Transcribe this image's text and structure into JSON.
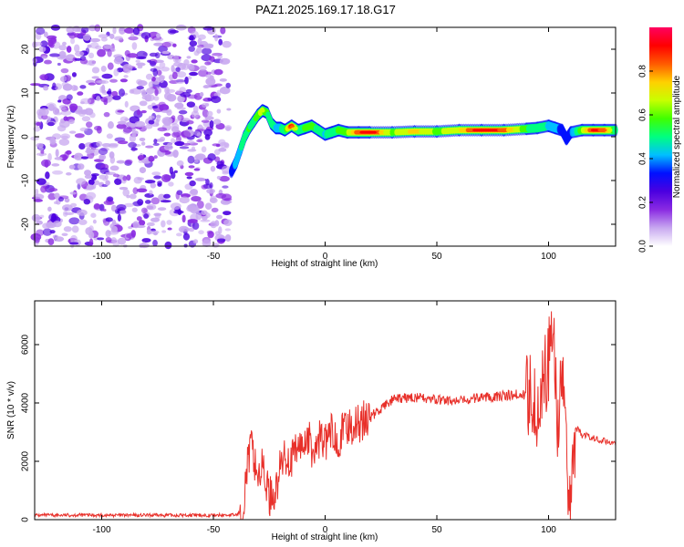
{
  "title": "PAZ1.2025.169.17.18.G17",
  "colors": {
    "snr_line": "#e8302a",
    "cmap": [
      "#ffffff",
      "#c8a8f0",
      "#8a2be2",
      "#4b00e0",
      "#0010ff",
      "#00bfff",
      "#00ff80",
      "#40ff00",
      "#c8ff00",
      "#ffd000",
      "#ff5a00",
      "#ff0000",
      "#ff0060"
    ]
  },
  "chart_data": [
    {
      "type": "heatmap",
      "xlabel": "Height of straight line (km)",
      "ylabel": "Frequency (Hz)",
      "xlim": [
        -130,
        130
      ],
      "ylim": [
        -25,
        25
      ],
      "xticks": [
        "-100",
        "-50",
        "0",
        "50",
        "100"
      ],
      "xtick_values": [
        -100,
        -50,
        0,
        50,
        100
      ],
      "yticks": [
        "-20",
        "-10",
        "0",
        "10",
        "20"
      ],
      "ytick_values": [
        -20,
        -10,
        0,
        10,
        20
      ],
      "colorbar": {
        "label": "Normalized spectral amplitude",
        "range": [
          0,
          1
        ],
        "ticks": [
          "0.0",
          "0.2",
          "0.4",
          "0.6",
          "0.8"
        ],
        "tick_values": [
          0,
          0.2,
          0.4,
          0.6,
          0.8
        ]
      },
      "noise_region": {
        "x_range": [
          -130,
          -43
        ],
        "f_range": [
          -25,
          25
        ]
      },
      "ridge": {
        "x": [
          -42,
          -40,
          -38,
          -36,
          -34,
          -32,
          -30,
          -28,
          -26,
          -24,
          -22,
          -20,
          -18,
          -15,
          -12,
          -9,
          -6,
          -3,
          0,
          3,
          6,
          10,
          15,
          20,
          30,
          40,
          50,
          60,
          70,
          80,
          90,
          95,
          100,
          103,
          106,
          108,
          110,
          115,
          120,
          125,
          130
        ],
        "f": [
          -8,
          -6,
          -3,
          0,
          2,
          3.5,
          5,
          6,
          5.5,
          3,
          2,
          2,
          1.5,
          2.5,
          1.5,
          2,
          2.5,
          1.5,
          0.5,
          1,
          1.5,
          1,
          1,
          1,
          1,
          1.2,
          1.2,
          1.5,
          1.5,
          1.5,
          1.8,
          2,
          2.5,
          2,
          1.5,
          -0.5,
          1,
          1.5,
          1.5,
          1.5,
          1.5
        ],
        "amp": [
          0.3,
          0.4,
          0.45,
          0.5,
          0.55,
          0.5,
          0.6,
          0.65,
          0.55,
          0.5,
          0.45,
          0.45,
          0.5,
          0.9,
          0.5,
          0.55,
          0.6,
          0.5,
          0.45,
          0.5,
          0.55,
          0.6,
          0.85,
          0.95,
          0.6,
          0.75,
          0.6,
          0.7,
          0.95,
          0.85,
          0.55,
          0.5,
          0.45,
          0.4,
          0.35,
          0.3,
          0.35,
          0.6,
          0.9,
          0.85,
          0.5
        ]
      }
    },
    {
      "type": "line",
      "xlabel": "Height of straight line (km)",
      "ylabel": "SNR (10 * v/v)",
      "xlim": [
        -130,
        130
      ],
      "ylim": [
        0,
        7500
      ],
      "xticks": [
        "-100",
        "-50",
        "0",
        "50",
        "100"
      ],
      "xtick_values": [
        -100,
        -50,
        0,
        50,
        100
      ],
      "yticks": [
        "0",
        "2000",
        "4000",
        "6000"
      ],
      "ytick_values": [
        0,
        2000,
        4000,
        6000
      ],
      "series": [
        {
          "x": [
            -130,
            -120,
            -110,
            -100,
            -90,
            -80,
            -70,
            -60,
            -50,
            -40,
            -37,
            -35,
            -33,
            -30,
            -28,
            -25,
            -22,
            -20,
            -18,
            -15,
            -12,
            -10,
            -8,
            -5,
            -2,
            0,
            3,
            6,
            10,
            15,
            20,
            25,
            30,
            40,
            50,
            60,
            70,
            80,
            90,
            93,
            95,
            98,
            100,
            102,
            104,
            106,
            108,
            110,
            112,
            115,
            120,
            125,
            130
          ],
          "y": [
            150,
            150,
            160,
            150,
            150,
            150,
            150,
            150,
            150,
            160,
            300,
            1800,
            2500,
            1500,
            1800,
            800,
            1000,
            1800,
            2200,
            2000,
            2500,
            2500,
            2900,
            2200,
            2900,
            2600,
            3000,
            2800,
            3200,
            3300,
            3500,
            3800,
            4100,
            4200,
            4100,
            4050,
            4200,
            4250,
            4300,
            4500,
            3800,
            4800,
            5500,
            6500,
            3500,
            4800,
            2000,
            800,
            3200,
            2900,
            2800,
            2700,
            2650
          ]
        }
      ]
    }
  ]
}
